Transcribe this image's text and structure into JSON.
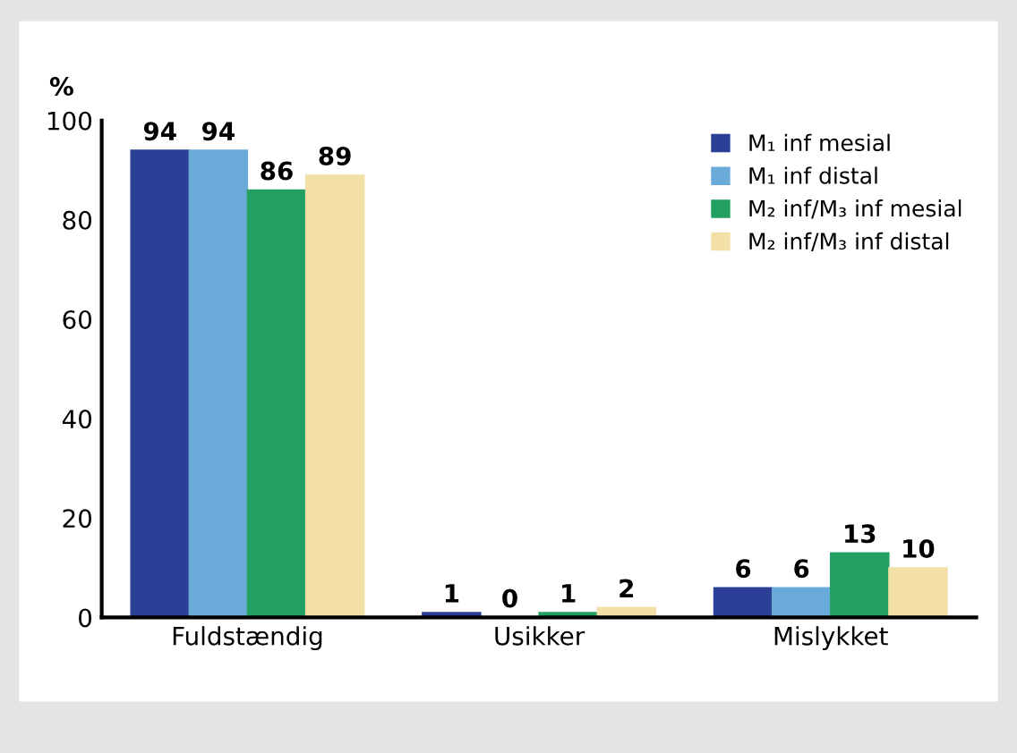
{
  "chart_data": {
    "type": "bar",
    "ylabel": "%",
    "categories": [
      "Fuldstændig",
      "Usikker",
      "Mislykket"
    ],
    "series": [
      {
        "name": "M₁ inf mesial",
        "color": "#2a3f95",
        "values": [
          94,
          1,
          6
        ]
      },
      {
        "name": "M₁ inf distal",
        "color": "#6aaad8",
        "values": [
          94,
          0,
          6
        ]
      },
      {
        "name": "M₂ inf/M₃ inf mesial",
        "color": "#22a062",
        "values": [
          86,
          1,
          13
        ]
      },
      {
        "name": "M₂ inf/M₃ inf distal",
        "color": "#f3e0a6",
        "values": [
          89,
          2,
          10
        ]
      }
    ],
    "ylim": [
      0,
      100
    ],
    "yticks": [
      0,
      20,
      40,
      60,
      80,
      100
    ],
    "data_labels": true,
    "legend": "top right",
    "grid": false
  }
}
